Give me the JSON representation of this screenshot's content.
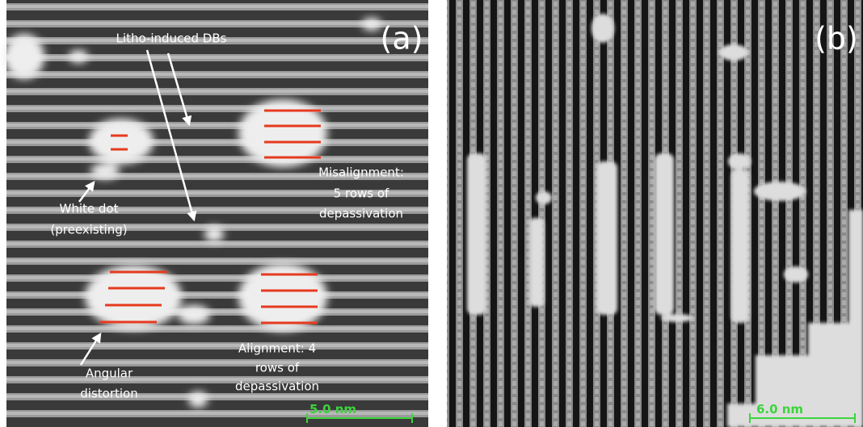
{
  "panels": [
    {
      "label": "(a)",
      "annotations": [
        {
          "lines": [
            "Litho-induced DBs"
          ]
        },
        {
          "lines": [
            "White dot",
            "(preexisting)"
          ]
        },
        {
          "lines": [
            "Misalignment:",
            "5 rows of",
            "depassivation"
          ]
        },
        {
          "lines": [
            "Alignment: 4",
            "rows of",
            "depassivation"
          ]
        },
        {
          "lines": [
            "Angular",
            "distortion"
          ]
        }
      ],
      "scale_bar": "5.0 nm"
    },
    {
      "label": "(b)",
      "scale_bar": "6.0 nm"
    }
  ]
}
